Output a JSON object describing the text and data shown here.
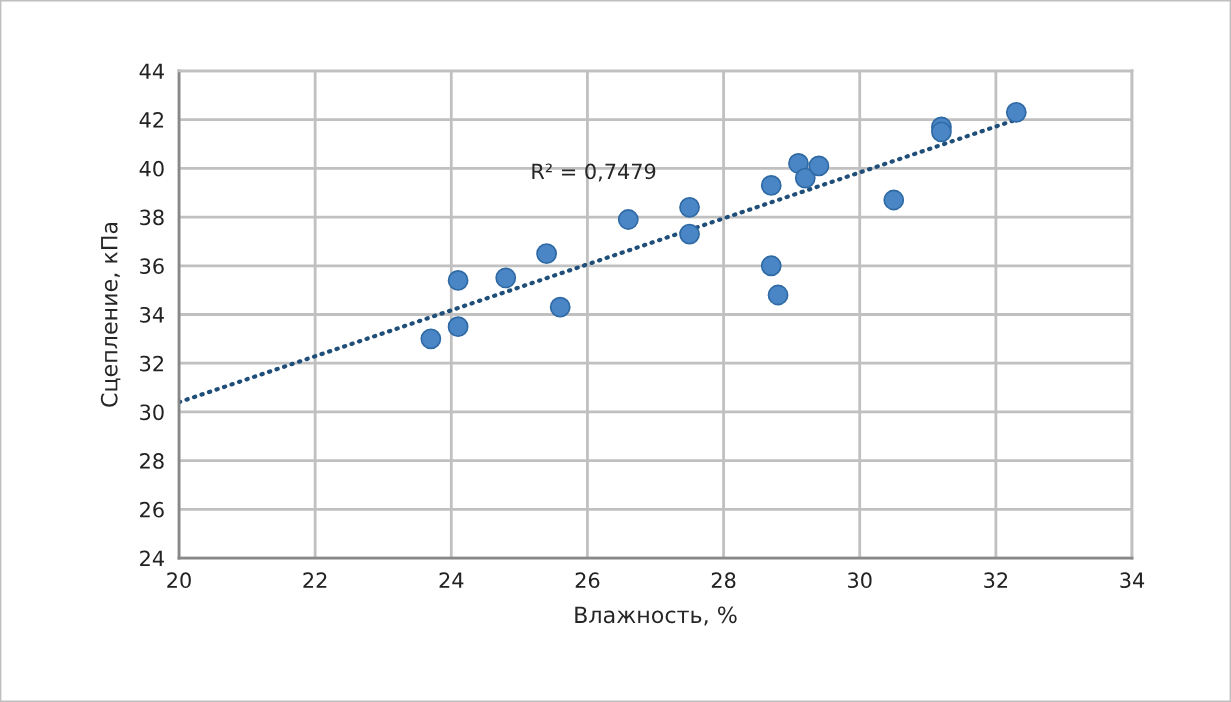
{
  "chart_data": {
    "type": "scatter",
    "xlabel": "Влажность, %",
    "ylabel": "Сцепление, кПа",
    "series": [
      {
        "type": "scatter",
        "color": "#4a86c5",
        "marker": "circle",
        "x": [
          23.7,
          24.1,
          24.1,
          24.8,
          25.4,
          25.6,
          26.6,
          27.5,
          27.5,
          28.7,
          28.7,
          28.8,
          29.1,
          29.2,
          29.4,
          30.5,
          31.2,
          31.2,
          32.3
        ],
        "values": [
          33.0,
          35.4,
          33.5,
          35.5,
          36.5,
          34.3,
          37.9,
          38.4,
          37.3,
          39.3,
          36.0,
          34.8,
          40.2,
          39.6,
          40.1,
          38.7,
          41.7,
          41.5,
          42.3
        ]
      },
      {
        "type": "line",
        "color": "#1f4e79",
        "line_style": "dotted",
        "x": [
          20,
          32.3
        ],
        "values": [
          30.4,
          42.0
        ]
      }
    ],
    "annotations": [
      "R² = 0,7479"
    ],
    "xlim": [
      20,
      34
    ],
    "xticks": [
      20,
      22,
      24,
      26,
      28,
      30,
      32,
      34
    ],
    "ylim": [
      24,
      44
    ],
    "yticks": [
      24,
      26,
      28,
      30,
      32,
      34,
      36,
      38,
      40,
      42,
      44
    ],
    "grid": true,
    "legend": false
  }
}
